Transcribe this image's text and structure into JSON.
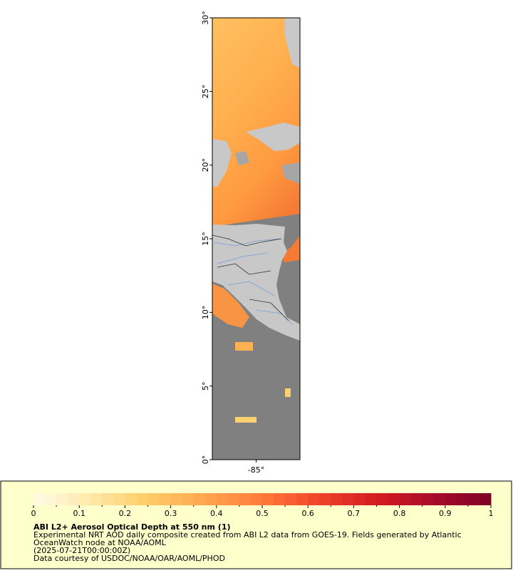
{
  "map": {
    "type": "map",
    "ylim": [
      0,
      30
    ],
    "xlim": [
      -88,
      -82
    ],
    "yticks": [
      {
        "value": 0,
        "label": "0°"
      },
      {
        "value": 5,
        "label": "5°"
      },
      {
        "value": 10,
        "label": "10°"
      },
      {
        "value": 15,
        "label": "15°"
      },
      {
        "value": 20,
        "label": "20°"
      },
      {
        "value": 25,
        "label": "25°"
      },
      {
        "value": 30,
        "label": "30°"
      }
    ],
    "xticks": [
      {
        "value": -85,
        "label": "-85°"
      }
    ]
  },
  "legend": {
    "colorbar": {
      "range": [
        0,
        1
      ],
      "ticks": [
        0,
        0.1,
        0.2,
        0.3,
        0.4,
        0.5,
        0.6,
        0.7,
        0.8,
        0.9,
        1
      ],
      "colors": [
        "#fffbe8",
        "#ffe9a8",
        "#ffcc66",
        "#ffa64d",
        "#ff7a3a",
        "#f0442a",
        "#d41a1f",
        "#a80c2a",
        "#800026"
      ]
    },
    "title": "ABI L2+ Aerosol Optical Depth at 550 nm (1)",
    "lines": [
      "Experimental NRT AOD daily composite created from ABI L2 data from GOES-19. Fields generated by Atlantic",
      "OceanWatch node at NOAA/AOML",
      "(2025-07-21T00:00:00Z)",
      "Data courtesy of USDOC/NOAA/OAR/AOML/PHOD"
    ]
  }
}
